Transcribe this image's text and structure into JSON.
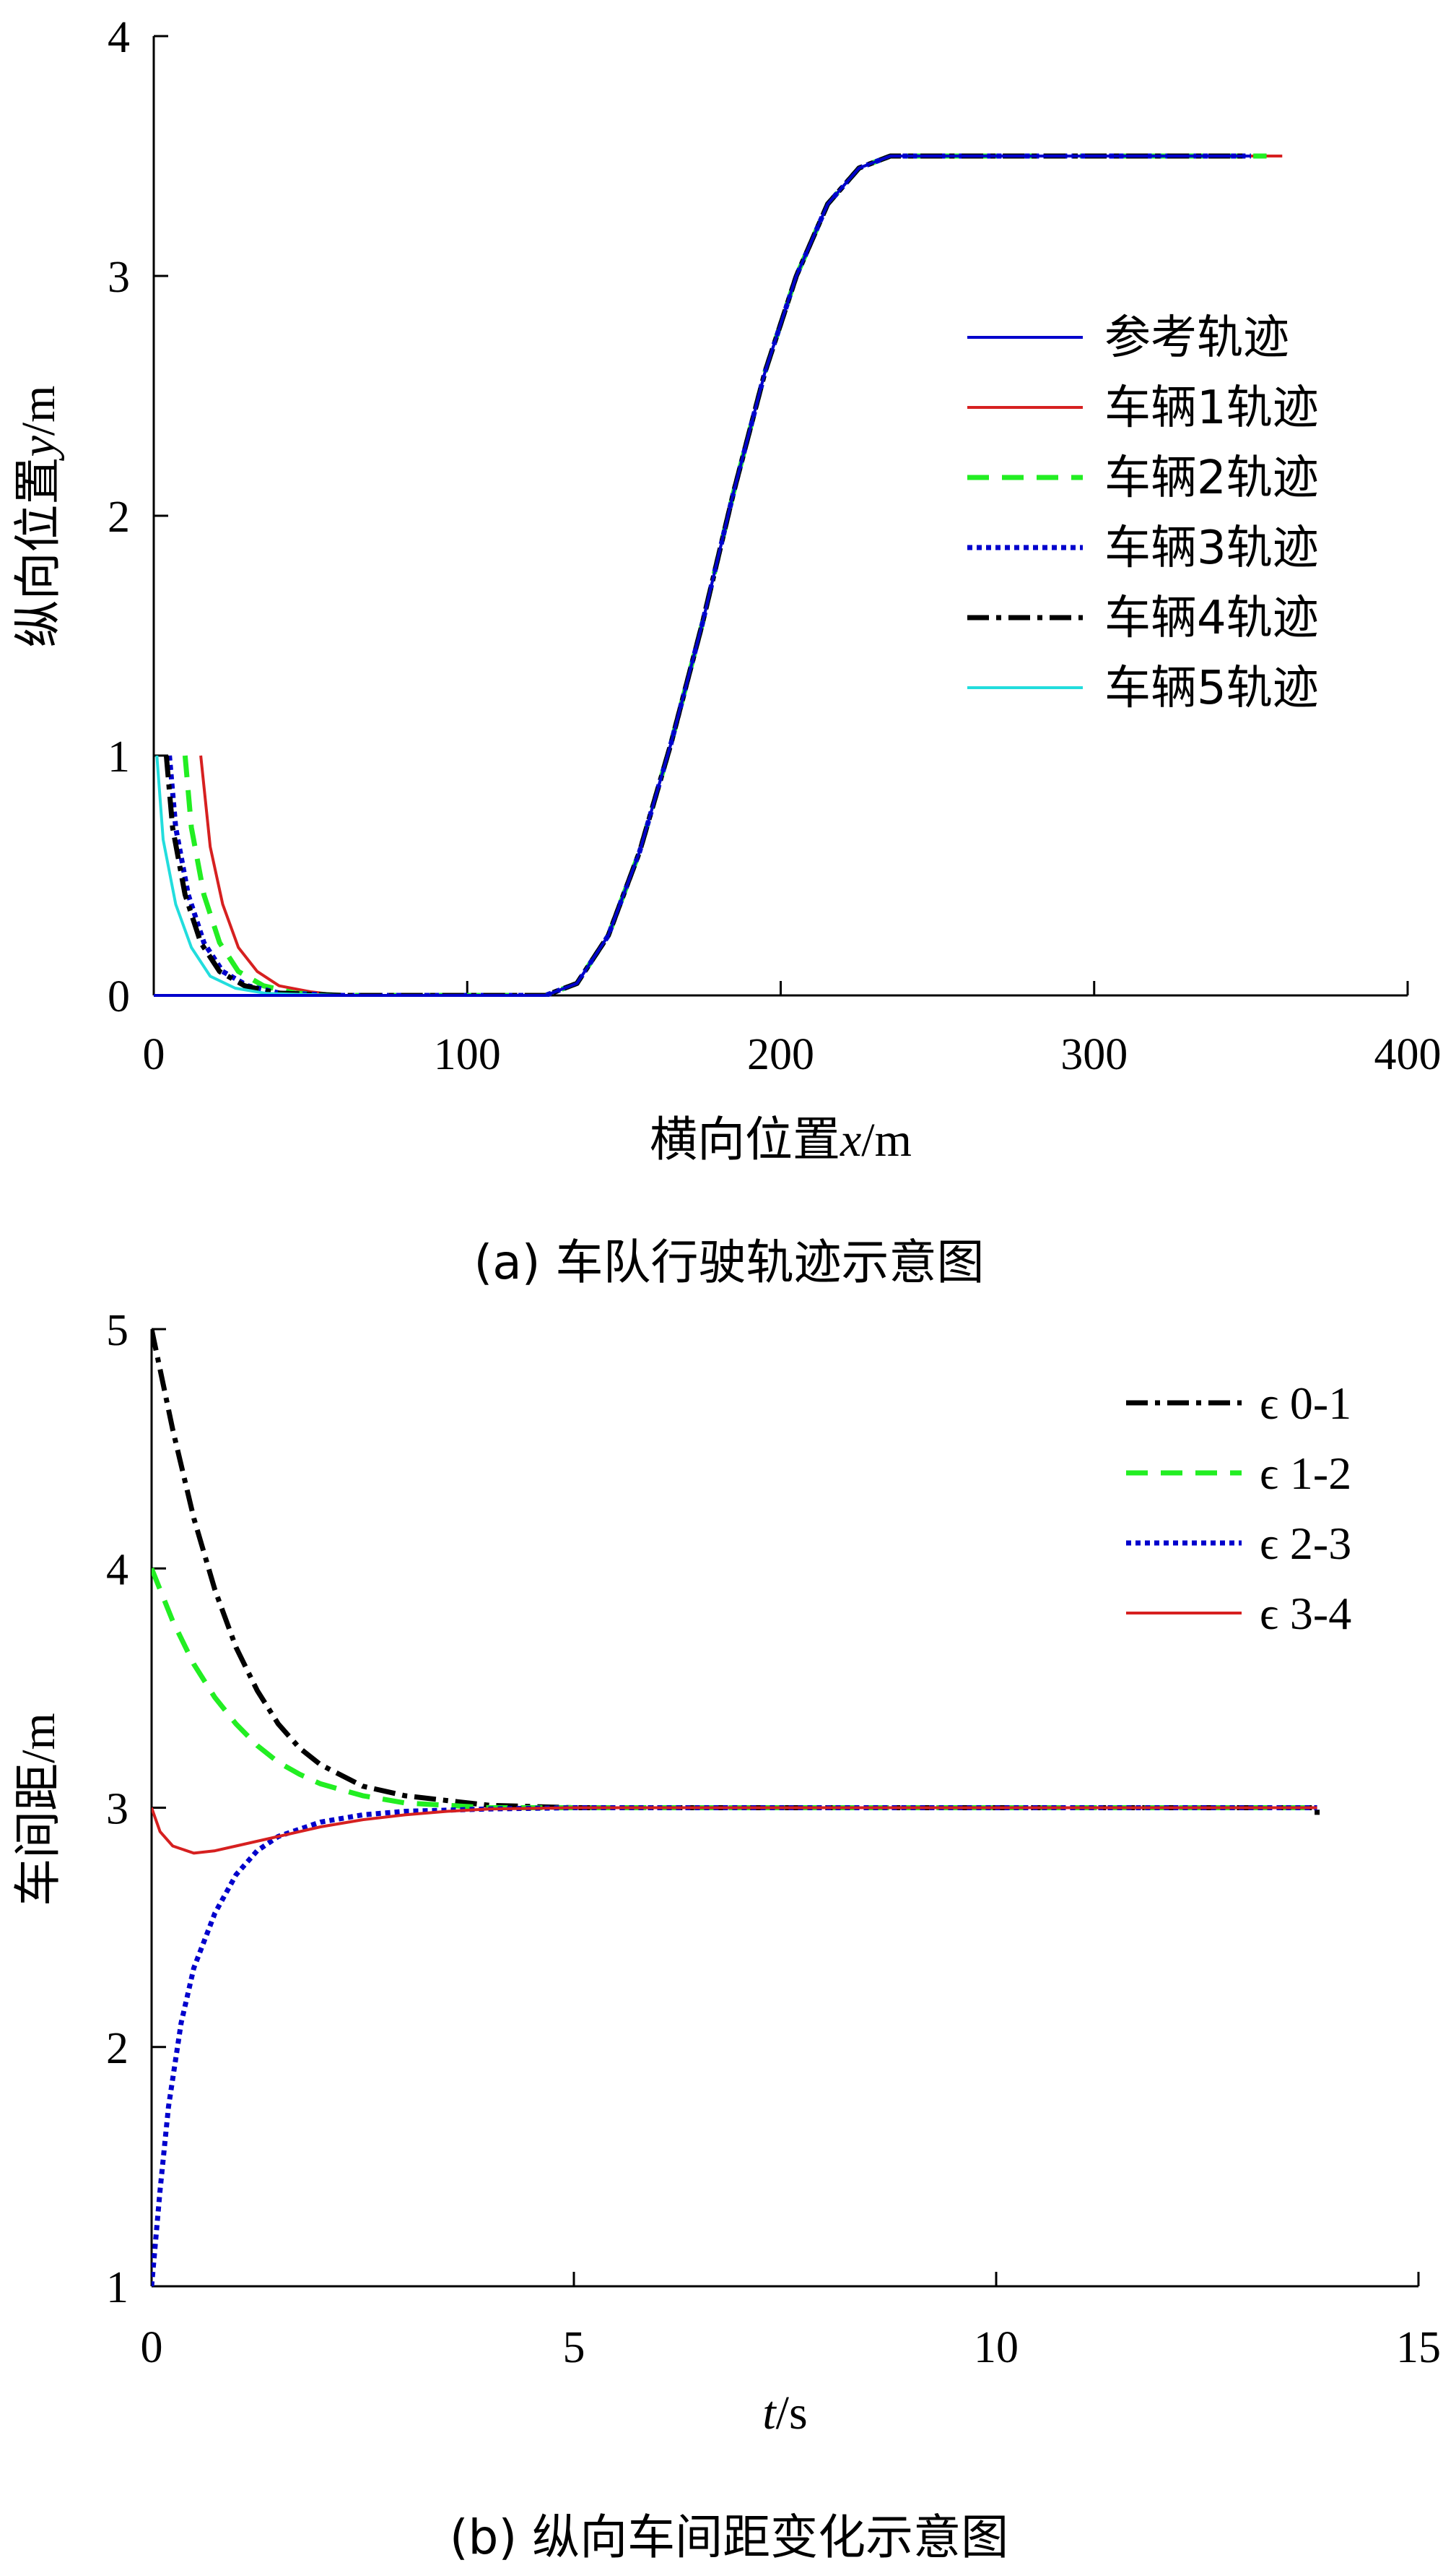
{
  "chart_data": [
    {
      "type": "line",
      "caption": "(a) 车队行驶轨迹示意图",
      "xlabel": {
        "prefix": "横向位置",
        "var": "x",
        "unit": "/m"
      },
      "ylabel": {
        "prefix": "纵向位置",
        "var": "y",
        "unit": "/m"
      },
      "xlim": [
        0,
        400
      ],
      "ylim": [
        0,
        4
      ],
      "xticks": [
        0,
        100,
        200,
        300,
        400
      ],
      "yticks": [
        0,
        1,
        2,
        3,
        4
      ],
      "legend_position": "right",
      "series": [
        {
          "name": "参考轨迹",
          "color": "#0000cc",
          "dash": "solid",
          "width": 4,
          "points": [
            [
              0,
              0
            ],
            [
              60,
              0
            ],
            [
              125,
              0
            ],
            [
              135,
              0.05
            ],
            [
              145,
              0.25
            ],
            [
              155,
              0.6
            ],
            [
              165,
              1.05
            ],
            [
              175,
              1.55
            ],
            [
              185,
              2.1
            ],
            [
              195,
              2.6
            ],
            [
              205,
              3.0
            ],
            [
              215,
              3.3
            ],
            [
              225,
              3.45
            ],
            [
              235,
              3.5
            ],
            [
              350,
              3.5
            ]
          ]
        },
        {
          "name": "车辆1轨迹",
          "color": "#d62020",
          "dash": "solid",
          "width": 4,
          "points": [
            [
              15,
              1.0
            ],
            [
              18,
              0.62
            ],
            [
              22,
              0.38
            ],
            [
              27,
              0.2
            ],
            [
              33,
              0.1
            ],
            [
              40,
              0.04
            ],
            [
              50,
              0.015
            ],
            [
              60,
              0
            ],
            [
              125,
              0
            ],
            [
              135,
              0.05
            ],
            [
              145,
              0.25
            ],
            [
              155,
              0.6
            ],
            [
              165,
              1.05
            ],
            [
              175,
              1.55
            ],
            [
              185,
              2.1
            ],
            [
              195,
              2.6
            ],
            [
              205,
              3.0
            ],
            [
              215,
              3.3
            ],
            [
              225,
              3.45
            ],
            [
              235,
              3.5
            ],
            [
              360,
              3.5
            ]
          ]
        },
        {
          "name": "车辆2轨迹",
          "color": "#22ee22",
          "dash": "dashed",
          "width": 7,
          "points": [
            [
              10,
              1.0
            ],
            [
              12,
              0.7
            ],
            [
              16,
              0.42
            ],
            [
              21,
              0.22
            ],
            [
              27,
              0.1
            ],
            [
              35,
              0.04
            ],
            [
              45,
              0.01
            ],
            [
              60,
              0
            ],
            [
              125,
              0
            ],
            [
              135,
              0.05
            ],
            [
              145,
              0.25
            ],
            [
              155,
              0.6
            ],
            [
              165,
              1.05
            ],
            [
              175,
              1.55
            ],
            [
              185,
              2.1
            ],
            [
              195,
              2.6
            ],
            [
              205,
              3.0
            ],
            [
              215,
              3.3
            ],
            [
              225,
              3.45
            ],
            [
              235,
              3.5
            ],
            [
              355,
              3.5
            ]
          ]
        },
        {
          "name": "车辆3轨迹",
          "color": "#0000cc",
          "dash": "dotted",
          "width": 7,
          "points": [
            [
              5,
              1.0
            ],
            [
              7,
              0.7
            ],
            [
              11,
              0.42
            ],
            [
              16,
              0.22
            ],
            [
              22,
              0.1
            ],
            [
              30,
              0.04
            ],
            [
              40,
              0.01
            ],
            [
              60,
              0
            ],
            [
              125,
              0
            ],
            [
              135,
              0.05
            ],
            [
              145,
              0.25
            ],
            [
              155,
              0.6
            ],
            [
              165,
              1.05
            ],
            [
              175,
              1.55
            ],
            [
              185,
              2.1
            ],
            [
              195,
              2.6
            ],
            [
              205,
              3.0
            ],
            [
              215,
              3.3
            ],
            [
              225,
              3.45
            ],
            [
              235,
              3.5
            ],
            [
              350,
              3.5
            ]
          ]
        },
        {
          "name": "车辆4轨迹",
          "color": "#000000",
          "dash": "dashdot",
          "width": 7,
          "points": [
            [
              4,
              1.0
            ],
            [
              6,
              0.7
            ],
            [
              10,
              0.42
            ],
            [
              15,
              0.22
            ],
            [
              21,
              0.1
            ],
            [
              29,
              0.04
            ],
            [
              39,
              0.01
            ],
            [
              60,
              0
            ],
            [
              125,
              0
            ],
            [
              135,
              0.05
            ],
            [
              145,
              0.25
            ],
            [
              155,
              0.6
            ],
            [
              165,
              1.05
            ],
            [
              175,
              1.55
            ],
            [
              185,
              2.1
            ],
            [
              195,
              2.6
            ],
            [
              205,
              3.0
            ],
            [
              215,
              3.3
            ],
            [
              225,
              3.45
            ],
            [
              235,
              3.5
            ],
            [
              348,
              3.5
            ]
          ]
        },
        {
          "name": "车辆5轨迹",
          "color": "#22dddd",
          "dash": "solid",
          "width": 4,
          "points": [
            [
              1,
              1.0
            ],
            [
              3,
              0.65
            ],
            [
              7,
              0.38
            ],
            [
              12,
              0.2
            ],
            [
              18,
              0.08
            ],
            [
              26,
              0.03
            ],
            [
              36,
              0.008
            ],
            [
              60,
              0
            ],
            [
              125,
              0
            ],
            [
              135,
              0.05
            ],
            [
              145,
              0.25
            ],
            [
              155,
              0.6
            ],
            [
              165,
              1.05
            ],
            [
              175,
              1.55
            ],
            [
              185,
              2.1
            ],
            [
              195,
              2.6
            ],
            [
              205,
              3.0
            ],
            [
              215,
              3.3
            ],
            [
              225,
              3.45
            ],
            [
              235,
              3.5
            ],
            [
              347,
              3.5
            ]
          ]
        }
      ]
    },
    {
      "type": "line",
      "caption": "(b) 纵向车间距变化示意图",
      "xlabel": {
        "prefix": "",
        "var": "t",
        "unit": "/s"
      },
      "ylabel": {
        "prefix": "车间距",
        "var": "",
        "unit": "/m"
      },
      "xlim": [
        0,
        15
      ],
      "ylim": [
        1,
        5
      ],
      "xticks": [
        0,
        5,
        10,
        15
      ],
      "yticks": [
        1,
        2,
        3,
        4,
        5
      ],
      "legend_position": "top-right",
      "series": [
        {
          "name": "ϵ 0-1",
          "color": "#000000",
          "dash": "dashdot",
          "width": 7,
          "points": [
            [
              0,
              5.0
            ],
            [
              0.25,
              4.58
            ],
            [
              0.5,
              4.21
            ],
            [
              0.75,
              3.91
            ],
            [
              1.0,
              3.67
            ],
            [
              1.25,
              3.49
            ],
            [
              1.5,
              3.35
            ],
            [
              1.75,
              3.25
            ],
            [
              2.0,
              3.18
            ],
            [
              2.5,
              3.09
            ],
            [
              3.0,
              3.05
            ],
            [
              3.5,
              3.03
            ],
            [
              4.0,
              3.01
            ],
            [
              5.0,
              3.0
            ],
            [
              13.8,
              3.0
            ],
            [
              13.8,
              2.97
            ]
          ]
        },
        {
          "name": "ϵ 1-2",
          "color": "#22ee22",
          "dash": "dashed",
          "width": 7,
          "points": [
            [
              0,
              4.0
            ],
            [
              0.25,
              3.78
            ],
            [
              0.5,
              3.6
            ],
            [
              0.75,
              3.46
            ],
            [
              1.0,
              3.35
            ],
            [
              1.25,
              3.26
            ],
            [
              1.5,
              3.19
            ],
            [
              1.75,
              3.14
            ],
            [
              2.0,
              3.1
            ],
            [
              2.5,
              3.05
            ],
            [
              3.0,
              3.02
            ],
            [
              3.5,
              3.01
            ],
            [
              4.0,
              3.0
            ],
            [
              13.8,
              3.0
            ]
          ]
        },
        {
          "name": "ϵ 2-3",
          "color": "#0000cc",
          "dash": "dotted",
          "width": 7,
          "points": [
            [
              0,
              1.0
            ],
            [
              0.1,
              1.4
            ],
            [
              0.2,
              1.75
            ],
            [
              0.35,
              2.1
            ],
            [
              0.5,
              2.33
            ],
            [
              0.75,
              2.56
            ],
            [
              1.0,
              2.72
            ],
            [
              1.25,
              2.82
            ],
            [
              1.5,
              2.88
            ],
            [
              2.0,
              2.94
            ],
            [
              2.5,
              2.97
            ],
            [
              3.0,
              2.985
            ],
            [
              4.0,
              2.995
            ],
            [
              5.0,
              3.0
            ],
            [
              13.8,
              3.0
            ]
          ]
        },
        {
          "name": "ϵ 3-4",
          "color": "#d62020",
          "dash": "solid",
          "width": 4,
          "points": [
            [
              0,
              3.0
            ],
            [
              0.1,
              2.9
            ],
            [
              0.25,
              2.84
            ],
            [
              0.5,
              2.81
            ],
            [
              0.75,
              2.82
            ],
            [
              1.0,
              2.84
            ],
            [
              1.5,
              2.88
            ],
            [
              2.0,
              2.92
            ],
            [
              2.5,
              2.95
            ],
            [
              3.0,
              2.97
            ],
            [
              3.5,
              2.985
            ],
            [
              4.0,
              2.995
            ],
            [
              5.0,
              3.0
            ],
            [
              13.8,
              3.0
            ]
          ]
        }
      ]
    }
  ]
}
